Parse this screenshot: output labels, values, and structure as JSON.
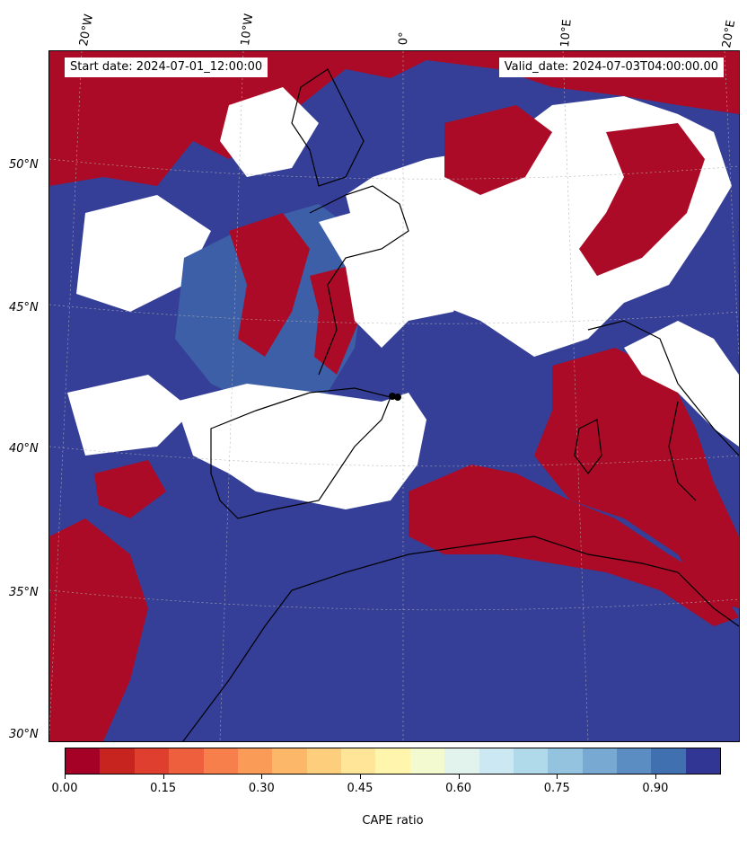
{
  "header": {
    "start_date": "Start date: 2024-07-01_12:00:00",
    "valid_date": "Valid_date: 2024-07-03T04:00:00.00"
  },
  "axes": {
    "lon_labels": [
      "20°W",
      "10°W",
      "0°",
      "10°E",
      "20°E"
    ],
    "lat_labels": [
      "50°N",
      "45°N",
      "40°N",
      "35°N",
      "30°N"
    ]
  },
  "colorbar": {
    "label": "CAPE ratio",
    "tick_labels": [
      "0.00",
      "0.15",
      "0.30",
      "0.45",
      "0.60",
      "0.75",
      "0.90"
    ],
    "tick_values": [
      0.0,
      0.15,
      0.3,
      0.45,
      0.6,
      0.75,
      0.9
    ],
    "range": [
      0.0,
      1.0
    ],
    "colors": [
      "#a50026",
      "#c7241f",
      "#df3f2f",
      "#ee5f3e",
      "#f67f4b",
      "#fa9b57",
      "#fdb768",
      "#fdcf7d",
      "#fee597",
      "#fff5ad",
      "#f4fad0",
      "#e2f3ee",
      "#cbe8f3",
      "#b0d9ea",
      "#93c3df",
      "#77a9d2",
      "#5b8cc2",
      "#4170b1",
      "#313695"
    ]
  },
  "map": {
    "colors": {
      "ocean_fill": "#353f98",
      "land_fill": "#ffffff",
      "high_cape_fill": "#ab0b26",
      "mixed_fill": "#3d5fa8",
      "coastline": "#000000",
      "gridline": "#b0b0b0",
      "marker": "#000000"
    }
  }
}
